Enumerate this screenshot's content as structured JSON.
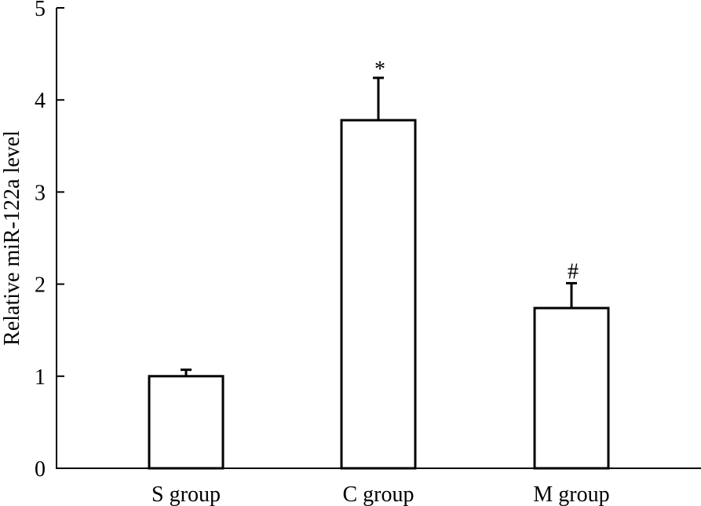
{
  "chart_data": {
    "type": "bar",
    "title": "",
    "xlabel": "",
    "ylabel": "Relative miR-122a level",
    "ylim": [
      0,
      5
    ],
    "yticks": [
      0,
      1,
      2,
      3,
      4,
      5
    ],
    "categories": [
      "S group",
      "C group",
      "M group"
    ],
    "values": [
      1.0,
      3.78,
      1.74
    ],
    "errors": [
      0.07,
      0.46,
      0.27
    ],
    "annotations": [
      "",
      "*",
      "#"
    ],
    "grid": false,
    "bar_fill": "#ffffff",
    "bar_stroke": "#000000"
  }
}
